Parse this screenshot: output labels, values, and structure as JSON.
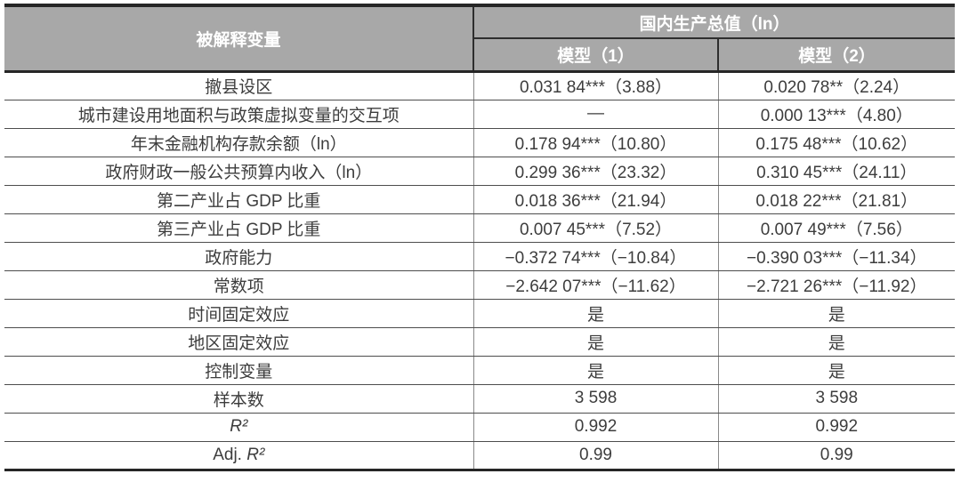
{
  "colors": {
    "header_bg": "#a8a8a8",
    "header_text": "#ffffff",
    "body_text": "#3d3d3d",
    "border_dark": "#262626"
  },
  "table": {
    "header": {
      "dependent_var": "被解释变量",
      "group": "国内生产总值（ln）",
      "model1": "模型（1）",
      "model2": "模型（2）"
    },
    "rows": [
      {
        "label": "撤县设区",
        "m1": "0.031 84***（3.88）",
        "m2": "0.020 78**（2.24）"
      },
      {
        "label": "城市建设用地面积与政策虚拟变量的交互项",
        "m1": "—",
        "m2": "0.000 13***（4.80）"
      },
      {
        "label": "年末金融机构存款余额（ln）",
        "m1": "0.178 94***（10.80）",
        "m2": "0.175 48***（10.62）"
      },
      {
        "label": "政府财政一般公共预算内收入（ln）",
        "m1": "0.299 36***（23.32）",
        "m2": "0.310 45***（24.11）"
      },
      {
        "label": "第二产业占 GDP 比重",
        "m1": "0.018 36***（21.94）",
        "m2": "0.018 22***（21.81）"
      },
      {
        "label": "第三产业占 GDP 比重",
        "m1": "0.007 45***（7.52）",
        "m2": "0.007 49***（7.56）"
      },
      {
        "label": "政府能力",
        "m1": "−0.372 74***（−10.84）",
        "m2": "−0.390 03***（−11.34）"
      },
      {
        "label": "常数项",
        "m1": "−2.642 07***（−11.62）",
        "m2": "−2.721 26***（−11.92）"
      },
      {
        "label": "时间固定效应",
        "m1": "是",
        "m2": "是"
      },
      {
        "label": "地区固定效应",
        "m1": "是",
        "m2": "是"
      },
      {
        "label": "控制变量",
        "m1": "是",
        "m2": "是"
      },
      {
        "label": "样本数",
        "m1": "3 598",
        "m2": "3 598"
      },
      {
        "label_prefix": "",
        "label_math": "R²",
        "m1": "0.992",
        "m2": "0.992"
      },
      {
        "label_prefix": "Adj. ",
        "label_math": "R²",
        "m1": "0.99",
        "m2": "0.99"
      }
    ]
  }
}
